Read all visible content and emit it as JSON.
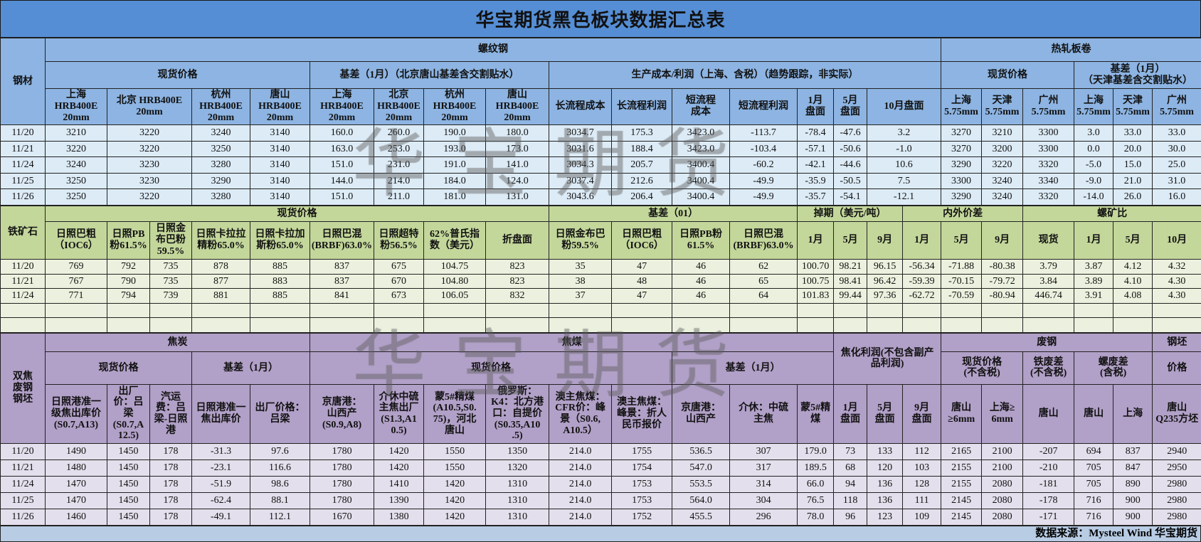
{
  "title": "华宝期货黑色板块数据汇总表",
  "watermark": "华宝期货",
  "colors": {
    "title_bar": "#558ED5",
    "rebar_header": "#8DB4E2",
    "rebar_rows": "#DCEBF6",
    "ore_header": "#C4D79B",
    "ore_rows": "#EBF1DE",
    "coke_header": "#B1A0C7",
    "coke_rows": "#E4DFEC",
    "footer": "#B8CCE4"
  },
  "rebar": {
    "section_label": "钢材",
    "title": "螺纹钢",
    "hrc_title": "热轧板卷",
    "spot_title": "现货价格",
    "basis_title": "基差（1月）（北京唐山基差含交割贴水）",
    "cost_title": "生产成本/利润（上海、含税）（趋势跟踪，非实际）",
    "hrc_spot_title": "现货价格",
    "hrc_basis_title": "基差（1月）\n（天津基差含交割贴水）",
    "columns": [
      "上海\nHRB400E\n20mm",
      "北京 HRB400E\n20mm",
      "杭州\nHRB400E\n20mm",
      "唐山\nHRB400E\n20mm",
      "上海\nHRB400E\n20mm",
      "北京\nHRB400E\n20mm",
      "杭州\nHRB400E\n20mm",
      "唐山\nHRB400E\n20mm",
      "长流程成本",
      "长流程利润",
      "短流程\n成本",
      "短流程利润",
      "1月\n盘面",
      "5月\n盘面",
      "10月盘面",
      "上海\n5.75mm",
      "天津\n5.75mm",
      "广州\n5.75mm",
      "上海\n5.75mm",
      "天津\n5.75mm",
      "广州\n5.75mm"
    ],
    "rows": [
      {
        "date": "11/20",
        "values": [
          "3210",
          "3220",
          "3240",
          "3140",
          "160.0",
          "260.0",
          "190.0",
          "180.0",
          "3034.7",
          "175.3",
          "3423.0",
          "-113.7",
          "-78.4",
          "-47.6",
          "3.2",
          "3270",
          "3210",
          "3300",
          "3.0",
          "33.0",
          "33.0"
        ]
      },
      {
        "date": "11/21",
        "values": [
          "3220",
          "3220",
          "3250",
          "3140",
          "163.0",
          "253.0",
          "193.0",
          "173.0",
          "3031.6",
          "188.4",
          "3423.0",
          "-103.4",
          "-57.1",
          "-50.6",
          "-1.0",
          "3270",
          "3200",
          "3300",
          "0.0",
          "20.0",
          "30.0"
        ]
      },
      {
        "date": "11/24",
        "values": [
          "3240",
          "3230",
          "3280",
          "3140",
          "151.0",
          "231.0",
          "191.0",
          "141.0",
          "3034.3",
          "205.7",
          "3400.4",
          "-60.2",
          "-42.1",
          "-44.6",
          "10.6",
          "3290",
          "3220",
          "3320",
          "-5.0",
          "15.0",
          "25.0"
        ]
      },
      {
        "date": "11/25",
        "values": [
          "3250",
          "3230",
          "3290",
          "3140",
          "144.0",
          "214.0",
          "184.0",
          "124.0",
          "3037.4",
          "212.6",
          "3400.4",
          "-49.9",
          "-35.9",
          "-50.5",
          "7.5",
          "3300",
          "3240",
          "3340",
          "-9.0",
          "21.0",
          "31.0"
        ]
      },
      {
        "date": "11/26",
        "values": [
          "3250",
          "3220",
          "3280",
          "3140",
          "151.0",
          "211.0",
          "181.0",
          "131.0",
          "3043.6",
          "206.4",
          "3400.4",
          "-49.9",
          "-35.7",
          "-54.1",
          "-12.1",
          "3290",
          "3240",
          "3320",
          "-14.0",
          "26.0",
          "16.0"
        ]
      }
    ]
  },
  "ore": {
    "section_label": "铁矿石",
    "spot_title": "现货价格",
    "basis_title": "基差（01）",
    "swap_title": "掉期（美元/吨）",
    "spread_title": "内外价差",
    "ratio_title": "螺矿比",
    "columns": [
      "日照巴粗\n（IOC6）",
      "日照PB\n粉61.5%",
      "日照金\n布巴粉\n59.5%",
      "日照卡拉拉\n精粉65.0%",
      "日照卡拉加\n斯粉65.0%",
      "日照巴混\n(BRBF)63.0%",
      "日照超特\n粉56.5%",
      "62%普氏指\n数（美元）",
      "折盘面",
      "日照金布巴\n粉59.5%",
      "日照巴粗\n（IOC6）",
      "日照PB粉\n61.5%",
      "日照巴混\n(BRBF)63.0%",
      "1月",
      "5月",
      "9月",
      "1月",
      "5月",
      "9月",
      "现货",
      "1月",
      "5月",
      "10月"
    ],
    "rows": [
      {
        "date": "11/20",
        "values": [
          "769",
          "792",
          "735",
          "878",
          "885",
          "837",
          "675",
          "104.75",
          "823",
          "35",
          "47",
          "46",
          "62",
          "100.70",
          "98.21",
          "96.15",
          "-56.34",
          "-71.88",
          "-80.38",
          "3.79",
          "3.87",
          "4.12",
          "4.32"
        ]
      },
      {
        "date": "11/21",
        "values": [
          "767",
          "790",
          "735",
          "877",
          "883",
          "837",
          "670",
          "104.80",
          "823",
          "38",
          "48",
          "46",
          "65",
          "100.75",
          "98.41",
          "96.42",
          "-59.39",
          "-70.15",
          "-79.72",
          "3.84",
          "3.89",
          "4.10",
          "4.30"
        ]
      },
      {
        "date": "11/24",
        "values": [
          "771",
          "794",
          "739",
          "881",
          "885",
          "841",
          "673",
          "106.05",
          "832",
          "37",
          "47",
          "46",
          "64",
          "101.83",
          "99.44",
          "97.36",
          "-62.72",
          "-70.59",
          "-80.94",
          "446.74",
          "3.91",
          "4.08",
          "4.30"
        ]
      },
      {
        "date": "",
        "values": [
          "",
          "",
          "",
          "",
          "",
          "",
          "",
          "",
          "",
          "",
          "",
          "",
          "",
          "",
          "",
          "",
          "",
          "",
          "",
          "",
          "",
          "",
          ""
        ]
      },
      {
        "date": "",
        "values": [
          "",
          "",
          "",
          "",
          "",
          "",
          "",
          "",
          "",
          "",
          "",
          "",
          "",
          "",
          "",
          "",
          "",
          "",
          "",
          "",
          "",
          "",
          ""
        ]
      }
    ]
  },
  "coke": {
    "section_label": "双焦\n废钢\n钢坯",
    "coke_title": "焦炭",
    "coal_title": "焦煤",
    "profit_title": "焦化利润(不包含副产\n品利润)",
    "scrap_title": "废钢",
    "billet_title": "钢坯",
    "coke_spot_title": "现货价格",
    "coke_basis_title": "基差（1月）",
    "coal_spot_title": "现货价格",
    "coal_basis_title": "基差（1月）",
    "scrap_spot_title": "现货价格\n(不含税)",
    "iron_scrap_title": "铁废差\n(不含税)",
    "rebar_scrap_title": "螺废差\n(含税)",
    "billet_price_title": "价格",
    "columns": [
      "日照港准一\n级焦出库价\n(S0.7,A13)",
      "出厂\n价：吕\n梁\n(S0.7,A\n12.5)",
      "汽运\n费：吕\n梁-日照\n港",
      "日照港准一\n焦出库价",
      "出厂价格：\n吕梁",
      "京唐港：\n山西产\n(S0.9,A8)",
      "介休中硫\n主焦出厂\n(S1.3,A1\n0.5)",
      "蒙5#精煤\n(A10.5,S0.\n75)，河北\n唐山",
      "俄罗斯：\nK4：北方港\n口：自提价\n(S0.35,A10\n.5)",
      "澳主焦煤：\nCFR价：峰\n景（S0.6,\nA10.5）",
      "澳主焦煤：\n峰景：折人\n民币报价",
      "京唐港：\n山西产",
      "介休：中硫\n主焦",
      "蒙5#精\n煤",
      "1月\n盘面",
      "5月\n盘面",
      "9月\n盘面",
      "唐山\n≥6mm",
      "上海≥\n6mm",
      "唐山",
      "唐山",
      "上海",
      "唐山\nQ235方坯"
    ],
    "rows": [
      {
        "date": "11/20",
        "values": [
          "1490",
          "1450",
          "178",
          "-31.3",
          "97.6",
          "1780",
          "1420",
          "1550",
          "1350",
          "214.0",
          "1755",
          "536.5",
          "307",
          "179.0",
          "73",
          "133",
          "112",
          "2165",
          "2100",
          "-207",
          "694",
          "837",
          "2940"
        ]
      },
      {
        "date": "11/21",
        "values": [
          "1480",
          "1450",
          "178",
          "-23.1",
          "116.6",
          "1780",
          "1420",
          "1550",
          "1320",
          "214.0",
          "1754",
          "547.0",
          "317",
          "189.5",
          "68",
          "120",
          "103",
          "2155",
          "2100",
          "-210",
          "705",
          "847",
          "2950"
        ]
      },
      {
        "date": "11/24",
        "values": [
          "1470",
          "1450",
          "178",
          "-51.9",
          "98.6",
          "1780",
          "1410",
          "1420",
          "1310",
          "214.0",
          "1753",
          "553.5",
          "314",
          "66.0",
          "94",
          "136",
          "128",
          "2155",
          "2080",
          "-181",
          "705",
          "890",
          "2980"
        ]
      },
      {
        "date": "11/25",
        "values": [
          "1470",
          "1450",
          "178",
          "-62.4",
          "88.1",
          "1780",
          "1390",
          "1420",
          "1310",
          "214.0",
          "1753",
          "564.0",
          "304",
          "76.5",
          "118",
          "136",
          "111",
          "2145",
          "2080",
          "-178",
          "716",
          "900",
          "2980"
        ]
      },
      {
        "date": "11/26",
        "values": [
          "1460",
          "1450",
          "178",
          "-49.1",
          "112.1",
          "1670",
          "1380",
          "1420",
          "1310",
          "214.0",
          "1752",
          "455.5",
          "296",
          "78.0",
          "96",
          "123",
          "109",
          "2145",
          "2080",
          "-171",
          "716",
          "900",
          "2980"
        ]
      }
    ]
  },
  "footer": {
    "source": "数据来源：Mysteel Wind 华宝期货"
  }
}
